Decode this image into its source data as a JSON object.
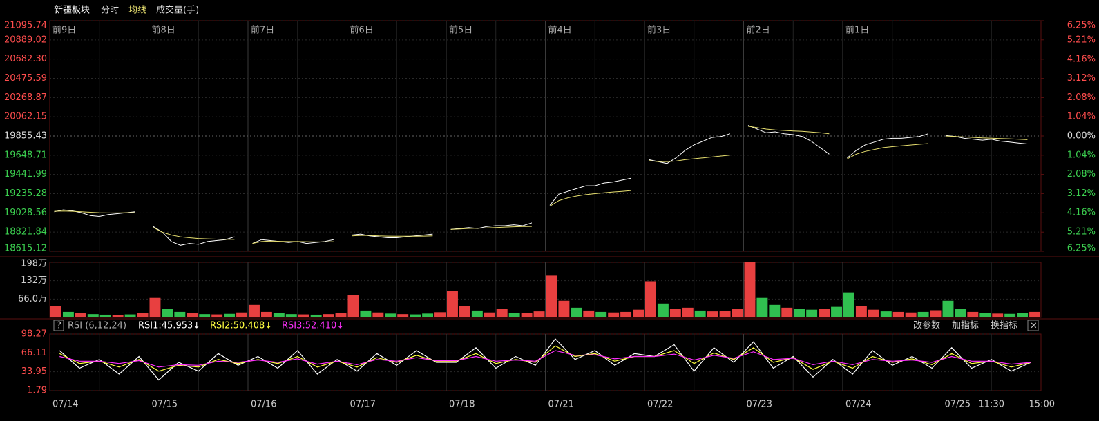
{
  "toolbar": [
    "新疆板块",
    "分时",
    "均线",
    "成交量(手)"
  ],
  "chart_data": [
    {
      "type": "line",
      "grid": true,
      "sessions": [
        "前9日",
        "前8日",
        "前7日",
        "前6日",
        "前5日",
        "前4日",
        "前3日",
        "前2日",
        "前1日"
      ],
      "up_color": "#ff4d4d",
      "down_color": "#3cd050",
      "flat_color": "#dddddd",
      "ylim": [
        18615.12,
        21095.74
      ],
      "yticks": [
        21095.74,
        20889.02,
        {
          "value": 20682.3,
          "label": "20682.30"
        },
        20475.59,
        20268.87,
        20062.15,
        19855.43,
        19648.71,
        19441.99,
        19235.28,
        19028.56,
        18821.84,
        18615.12
      ],
      "y2lim": [
        -6.25,
        6.25
      ],
      "y2ticks": [
        {
          "value": 6.25,
          "label": "6.25%"
        },
        {
          "value": 5.21,
          "label": "5.21%"
        },
        {
          "value": 4.16,
          "label": "4.16%"
        },
        {
          "value": 3.12,
          "label": "3.12%"
        },
        {
          "value": 2.08,
          "label": "2.08%"
        },
        {
          "value": 1.04,
          "label": "1.04%"
        },
        {
          "value": 0,
          "label": "0.00%"
        },
        {
          "value": -1.04,
          "label": "1.04%"
        },
        {
          "value": -2.08,
          "label": "2.08%"
        },
        {
          "value": -3.12,
          "label": "3.12%"
        },
        {
          "value": -4.16,
          "label": "4.16%"
        },
        {
          "value": -5.21,
          "label": "5.21%"
        },
        {
          "value": -6.25,
          "label": "6.25%"
        }
      ],
      "series": [
        {
          "color": "#ffffff",
          "values": [
            19040,
            19060,
            19050,
            19030,
            19000,
            18990,
            19010,
            19020,
            19030,
            19040,
            null,
            18880,
            18820,
            18720,
            18680,
            18700,
            18690,
            18720,
            18730,
            18740,
            18770,
            null,
            18700,
            18740,
            18730,
            18720,
            18710,
            18720,
            18700,
            18710,
            18720,
            18740,
            null,
            18790,
            18800,
            18780,
            18770,
            18760,
            18760,
            18770,
            18780,
            18790,
            18800,
            null,
            18850,
            18860,
            18870,
            18860,
            18880,
            18890,
            18890,
            18900,
            18890,
            18920,
            null,
            19110,
            19230,
            19260,
            19290,
            19320,
            19320,
            19350,
            19360,
            19380,
            19400,
            null,
            19600,
            19580,
            19560,
            19620,
            19700,
            19760,
            19800,
            19840,
            19850,
            19880,
            null,
            19970,
            19930,
            19890,
            19900,
            19880,
            19870,
            19850,
            19800,
            19730,
            19660,
            null,
            19620,
            19700,
            19760,
            19790,
            19820,
            19830,
            19830,
            19840,
            19850,
            19880,
            null,
            19860,
            19850,
            19830,
            19820,
            19810,
            19820,
            19800,
            19790,
            19780,
            19770
          ]
        },
        {
          "color": "#e8e070",
          "values": [
            19045,
            19048,
            19045,
            19040,
            19035,
            19030,
            19028,
            19028,
            19030,
            19030,
            null,
            18870,
            18820,
            18790,
            18770,
            18760,
            18752,
            18748,
            18745,
            18743,
            18742,
            null,
            18700,
            18720,
            18725,
            18722,
            18720,
            18720,
            18718,
            18716,
            18716,
            18718,
            null,
            18780,
            18785,
            18785,
            18780,
            18778,
            18776,
            18776,
            18777,
            18778,
            18780,
            null,
            18850,
            18855,
            18860,
            18862,
            18866,
            18870,
            18874,
            18878,
            18880,
            18882,
            null,
            19100,
            19160,
            19190,
            19210,
            19225,
            19235,
            19245,
            19253,
            19260,
            19268,
            null,
            19590,
            19580,
            19580,
            19585,
            19600,
            19610,
            19620,
            19630,
            19640,
            19650,
            null,
            19960,
            19945,
            19930,
            19920,
            19915,
            19910,
            19905,
            19898,
            19890,
            19880,
            null,
            19610,
            19660,
            19690,
            19710,
            19730,
            19740,
            19750,
            19758,
            19766,
            19774,
            null,
            19855,
            19850,
            19845,
            19840,
            19835,
            19832,
            19828,
            19825,
            19820,
            19815
          ]
        }
      ]
    },
    {
      "type": "bar",
      "ylim": [
        0,
        1980000
      ],
      "yticks": [
        {
          "value": 1980000,
          "label": "198万"
        },
        {
          "value": 1320000,
          "label": "132万"
        },
        {
          "value": 660000,
          "label": "66.0万"
        }
      ],
      "values": [
        400000,
        200000,
        150000,
        120000,
        100000,
        90000,
        110000,
        160000,
        700000,
        300000,
        200000,
        150000,
        120000,
        110000,
        130000,
        180000,
        450000,
        200000,
        150000,
        120000,
        110000,
        100000,
        120000,
        170000,
        800000,
        250000,
        180000,
        140000,
        120000,
        110000,
        140000,
        190000,
        950000,
        400000,
        250000,
        180000,
        300000,
        150000,
        160000,
        220000,
        1500000,
        600000,
        350000,
        250000,
        200000,
        180000,
        200000,
        280000,
        1300000,
        500000,
        300000,
        350000,
        250000,
        220000,
        240000,
        300000,
        1980000,
        700000,
        450000,
        350000,
        300000,
        280000,
        300000,
        380000,
        900000,
        400000,
        280000,
        220000,
        200000,
        180000,
        200000,
        260000,
        600000,
        300000,
        200000,
        160000,
        140000,
        130000,
        150000,
        200000
      ],
      "colors": [
        "#e84040",
        "#30c050",
        "#e84040",
        "#30c050",
        "#30c050",
        "#e84040",
        "#30c050",
        "#e84040",
        "#e84040",
        "#30c050",
        "#30c050",
        "#e84040",
        "#30c050",
        "#e84040",
        "#30c050",
        "#e84040",
        "#e84040",
        "#e84040",
        "#30c050",
        "#30c050",
        "#e84040",
        "#30c050",
        "#e84040",
        "#e84040",
        "#e84040",
        "#30c050",
        "#e84040",
        "#30c050",
        "#e84040",
        "#30c050",
        "#30c050",
        "#e84040",
        "#e84040",
        "#e84040",
        "#30c050",
        "#e84040",
        "#e84040",
        "#30c050",
        "#e84040",
        "#e84040",
        "#e84040",
        "#e84040",
        "#30c050",
        "#e84040",
        "#30c050",
        "#e84040",
        "#e84040",
        "#e84040",
        "#e84040",
        "#30c050",
        "#e84040",
        "#e84040",
        "#30c050",
        "#e84040",
        "#e84040",
        "#e84040",
        "#e84040",
        "#30c050",
        "#30c050",
        "#e84040",
        "#30c050",
        "#30c050",
        "#e84040",
        "#30c050",
        "#30c050",
        "#e84040",
        "#e84040",
        "#30c050",
        "#e84040",
        "#e84040",
        "#30c050",
        "#e84040",
        "#30c050",
        "#30c050",
        "#e84040",
        "#30c050",
        "#e84040",
        "#30c050",
        "#30c050",
        "#e84040"
      ]
    },
    {
      "type": "line",
      "indicator": "RSI (6,12,24)",
      "readouts": [
        "RSI1:45.953↓",
        "RSI2:50.408↓",
        "RSI3:52.410↓"
      ],
      "buttons": [
        "改参数",
        "加指标",
        "换指标"
      ],
      "x_labels": [
        "07/14",
        "07/15",
        "07/16",
        "07/17",
        "07/18",
        "07/21",
        "07/22",
        "07/23",
        "07/24",
        "07/25"
      ],
      "end_labels": [
        "11:30",
        "15:00"
      ],
      "ylim": [
        1.79,
        98.27
      ],
      "yticks": [
        98.27,
        66.11,
        33.95,
        1.79
      ],
      "series": [
        {
          "color": "#ffffff",
          "values": [
            70,
            40,
            55,
            30,
            60,
            20,
            50,
            35,
            65,
            45,
            60,
            40,
            70,
            30,
            55,
            35,
            65,
            45,
            70,
            50,
            50,
            75,
            40,
            60,
            45,
            90,
            55,
            70,
            45,
            65,
            60,
            80,
            35,
            75,
            50,
            85,
            40,
            60,
            25,
            55,
            30,
            70,
            45,
            60,
            40,
            75,
            40,
            55,
            35,
            50
          ]
        },
        {
          "color": "#ffff40",
          "values": [
            65,
            48,
            52,
            42,
            55,
            35,
            45,
            42,
            55,
            48,
            55,
            48,
            60,
            42,
            52,
            42,
            58,
            50,
            62,
            52,
            52,
            65,
            48,
            55,
            50,
            78,
            60,
            65,
            52,
            60,
            60,
            70,
            48,
            66,
            55,
            75,
            50,
            58,
            38,
            52,
            40,
            60,
            50,
            56,
            46,
            65,
            48,
            52,
            42,
            50
          ]
        },
        {
          "color": "#ff30ff",
          "values": [
            60,
            52,
            52,
            48,
            53,
            42,
            46,
            45,
            52,
            50,
            54,
            50,
            56,
            47,
            52,
            46,
            55,
            52,
            58,
            53,
            53,
            60,
            52,
            54,
            52,
            70,
            62,
            63,
            56,
            60,
            60,
            64,
            54,
            62,
            57,
            68,
            55,
            57,
            46,
            52,
            46,
            55,
            52,
            54,
            50,
            60,
            52,
            52,
            47,
            50
          ]
        }
      ]
    }
  ]
}
